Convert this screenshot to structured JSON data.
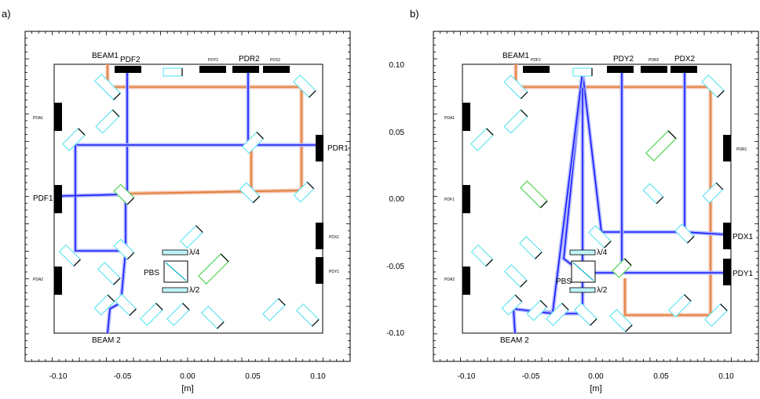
{
  "colors": {
    "beam_blue": "#1a1aff",
    "beam_glow": "#aab4ff",
    "beam_orange": "#e07a30",
    "beam_orange_glow": "#f2b8a0",
    "optic_cyan": "#66e6f0",
    "optic_green": "#55d455",
    "detector": "#000000"
  },
  "axes": {
    "x_title": "[m]",
    "x_ticks": [
      "-0.10",
      "-0.05",
      "0.00",
      "0.05",
      "0.10"
    ],
    "y_ticks": [
      "0.10",
      "0.05",
      "0.00",
      "-0.05",
      "-0.10"
    ],
    "x_range": [
      -0.12,
      0.12
    ],
    "y_range": [
      -0.12,
      0.12
    ]
  },
  "panel_a": {
    "letter": "a)",
    "labels": {
      "beam1": "BEAM1",
      "beam2": "BEAM 2",
      "pdf1": "PDF1",
      "pdf2": "PDF2",
      "pdr1": "PDR1",
      "pdr2": "PDR2",
      "pdy2": "PDY2",
      "pdx2": "PDX2",
      "pda1": "PDA1",
      "pda2": "PDA2",
      "pdx1": "PDX1",
      "pdy1": "PDY1",
      "pbs": "PBS",
      "qwp": "λ/4",
      "hwp": "λ/2"
    }
  },
  "panel_b": {
    "letter": "b)",
    "labels": {
      "beam1": "BEAM1",
      "beam2": "BEAM 2",
      "pdf2": "PDF2",
      "pdy2": "PDY2",
      "pdr2": "PDR2",
      "pdx2": "PDX2",
      "pda1": "PDA1",
      "pdf1": "PDF1",
      "pda2": "PDA2",
      "pdr1": "PDR1",
      "pdx1": "PDX1",
      "pdy1": "PDY1",
      "pbs": "PBS",
      "qwp": "λ/4",
      "hwp": "λ/2"
    }
  }
}
